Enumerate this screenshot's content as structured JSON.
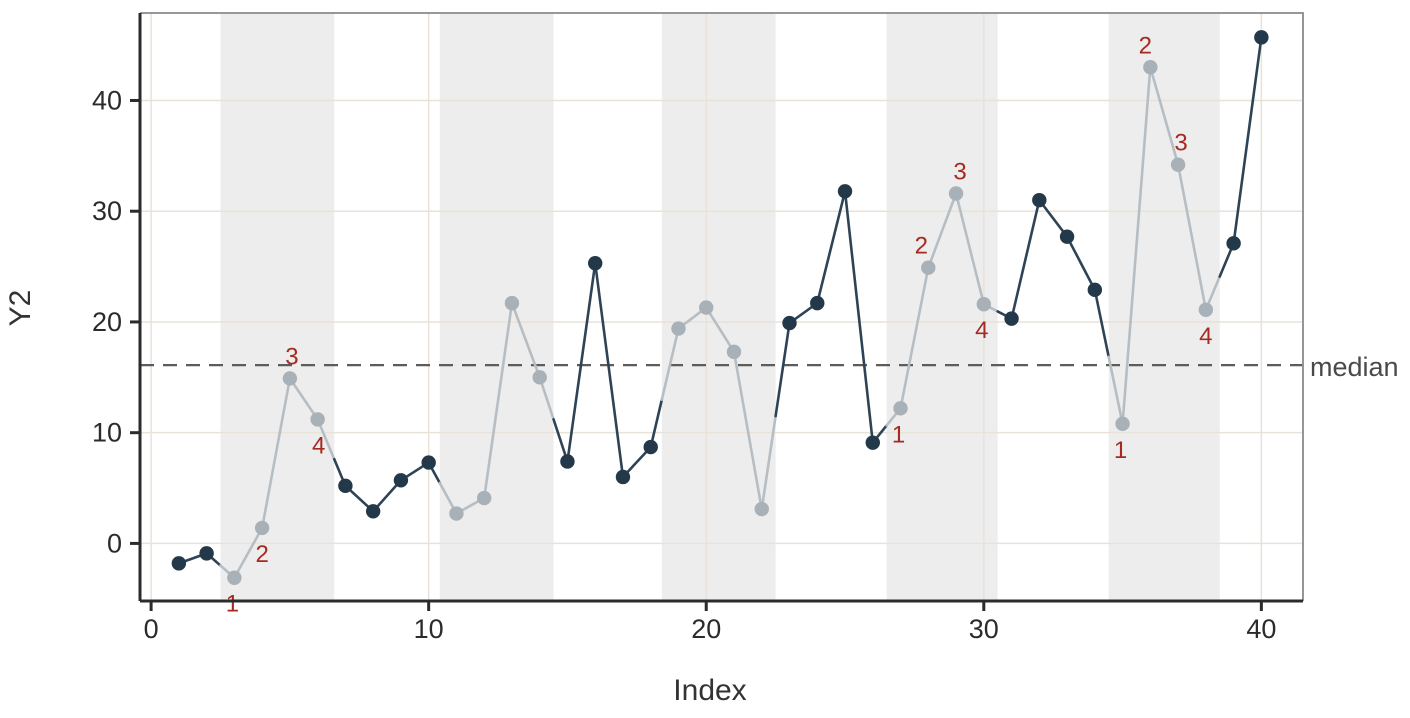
{
  "chart_data": {
    "type": "line",
    "title": "",
    "xlabel": "Index",
    "ylabel": "Y2",
    "x": [
      1,
      2,
      3,
      4,
      5,
      6,
      7,
      8,
      9,
      10,
      11,
      12,
      13,
      14,
      15,
      16,
      17,
      18,
      19,
      20,
      21,
      22,
      23,
      24,
      25,
      26,
      27,
      28,
      29,
      30,
      31,
      32,
      33,
      34,
      35,
      36,
      37,
      38,
      39,
      40
    ],
    "y": [
      -1.8,
      -0.9,
      -3.1,
      1.4,
      14.9,
      11.2,
      5.2,
      2.9,
      5.7,
      7.3,
      2.7,
      4.1,
      21.7,
      15.0,
      7.4,
      25.3,
      6.0,
      8.7,
      19.4,
      21.3,
      17.3,
      3.1,
      19.9,
      21.7,
      31.8,
      9.1,
      12.2,
      24.9,
      31.6,
      21.6,
      20.3,
      31.0,
      27.7,
      22.9,
      10.8,
      43.0,
      34.2,
      21.1,
      27.1,
      45.7
    ],
    "xlim": [
      -0.4,
      41.5
    ],
    "ylim": [
      -5.2,
      47.9
    ],
    "x_ticks": [
      0,
      10,
      20,
      30,
      40
    ],
    "y_ticks": [
      0,
      10,
      20,
      30,
      40
    ],
    "grid": true,
    "legend": "none",
    "median_value": 16.1,
    "median_label": "median",
    "highlight_bands": [
      [
        2.5,
        6.6
      ],
      [
        10.4,
        14.5
      ],
      [
        18.4,
        22.5
      ],
      [
        26.5,
        30.5
      ],
      [
        34.5,
        38.5
      ]
    ],
    "highlight_note": "points inside shaded bands are drawn gray; others dark navy",
    "annotations": [
      {
        "x": 3,
        "label": "1",
        "pos": "below",
        "dx": -2
      },
      {
        "x": 4,
        "label": "2",
        "pos": "below",
        "dx": 0
      },
      {
        "x": 5,
        "label": "3",
        "pos": "above",
        "dx": 2
      },
      {
        "x": 6,
        "label": "4",
        "pos": "below",
        "dx": 1
      },
      {
        "x": 27,
        "label": "1",
        "pos": "below",
        "dx": -2
      },
      {
        "x": 28,
        "label": "2",
        "pos": "above",
        "dx": -7
      },
      {
        "x": 29,
        "label": "3",
        "pos": "above",
        "dx": 4
      },
      {
        "x": 30,
        "label": "4",
        "pos": "below",
        "dx": -2
      },
      {
        "x": 35,
        "label": "1",
        "pos": "below",
        "dx": -2
      },
      {
        "x": 36,
        "label": "2",
        "pos": "above",
        "dx": -5
      },
      {
        "x": 37,
        "label": "3",
        "pos": "above",
        "dx": 3
      },
      {
        "x": 38,
        "label": "4",
        "pos": "below",
        "dx": 0
      }
    ],
    "colors": {
      "dark_point": "#233849",
      "dark_line": "#2e4456",
      "gray_point": "#a8b1b8",
      "gray_line": "#b6bec4",
      "band": "#ededed",
      "grid": "#e9e2d8",
      "axis": "#2b2b2b",
      "border": "#8a8a8a",
      "median_line": "#5c5c5c",
      "annotation": "#a52a21",
      "tick_label": "#2b2b2b",
      "axis_title": "#333333",
      "median_label_color": "#4a4a4a",
      "background": "#ffffff"
    }
  }
}
